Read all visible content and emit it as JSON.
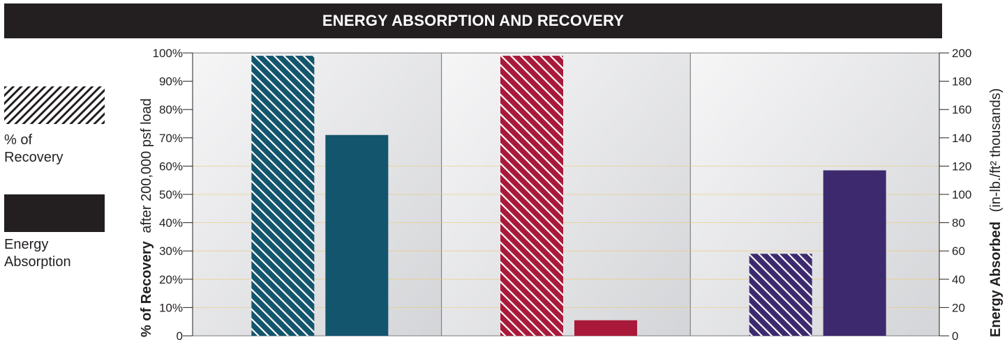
{
  "title": "ENERGY ABSORPTION AND RECOVERY",
  "legend": {
    "recovery_label": "% of Recovery",
    "energy_label": "Energy Absorption"
  },
  "axes": {
    "left_label_bold": "% of Recovery",
    "left_label_rest": "after 200,000 psf load",
    "right_label_bold": "Energy Absorbed",
    "right_label_rest": "(in-lb./ft² thousands)"
  },
  "colors": {
    "group_1": "#14556e",
    "group_2": "#a91a3a",
    "group_3": "#3d2a6e",
    "title_bg": "#231f20"
  },
  "chart_data": {
    "type": "bar",
    "categories": [
      "",
      "",
      ""
    ],
    "series": [
      {
        "name": "% of Recovery",
        "axis": "left",
        "unit": "%",
        "pattern": "hatched",
        "values": [
          99,
          99,
          29
        ]
      },
      {
        "name": "Energy Absorption",
        "axis": "right",
        "unit": "in-lb./ft² thousands",
        "pattern": "solid",
        "values": [
          142,
          11,
          117
        ]
      }
    ],
    "y_left": {
      "ylim": [
        0,
        100
      ],
      "ticks": [
        "0",
        "10%",
        "20%",
        "30%",
        "40%",
        "50%",
        "60%",
        "70%",
        "80%",
        "90%",
        "100%"
      ]
    },
    "y_right": {
      "ylim": [
        0,
        200
      ],
      "ticks": [
        "0",
        "20",
        "40",
        "60",
        "80",
        "100",
        "120",
        "140",
        "160",
        "180",
        "200"
      ]
    },
    "gridlines": [
      60,
      50,
      40,
      30,
      20,
      10
    ],
    "legend_placement": "left"
  }
}
